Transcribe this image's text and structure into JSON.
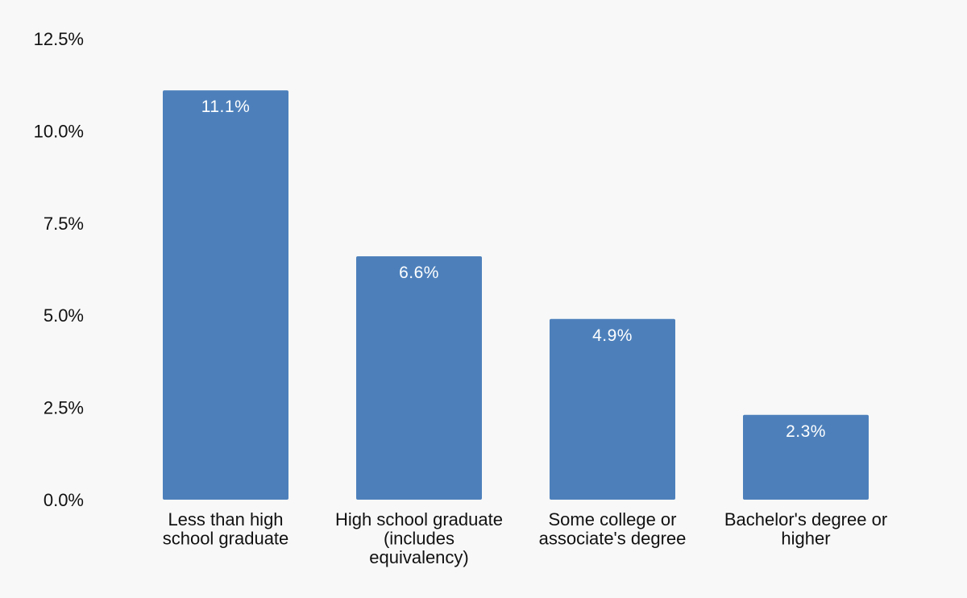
{
  "chart_data": {
    "type": "bar",
    "title": "",
    "xlabel": "",
    "ylabel": "",
    "categories": [
      "Less than high school graduate",
      "High school graduate (includes equivalency)",
      "Some college or associate's degree",
      "Bachelor's degree or higher"
    ],
    "category_lines": [
      [
        "Less than high",
        "school graduate"
      ],
      [
        "High school graduate",
        "(includes",
        "equivalency)"
      ],
      [
        "Some college or",
        "associate's degree"
      ],
      [
        "Bachelor's degree or",
        "higher"
      ]
    ],
    "values": [
      11.1,
      6.6,
      4.9,
      2.3
    ],
    "data_labels": [
      "11.1%",
      "6.6%",
      "4.9%",
      "2.3%"
    ],
    "ylim": [
      0,
      12.5
    ],
    "yticks": [
      0,
      2.5,
      5.0,
      7.5,
      10.0,
      12.5
    ],
    "ytick_labels": [
      "0.0%",
      "2.5%",
      "5.0%",
      "7.5%",
      "10.0%",
      "12.5%"
    ],
    "grid": false,
    "colors": {
      "bar": "#4d80bb",
      "background": "#f8f8f8",
      "text": "#111111",
      "bar_label": "#ffffff"
    }
  }
}
